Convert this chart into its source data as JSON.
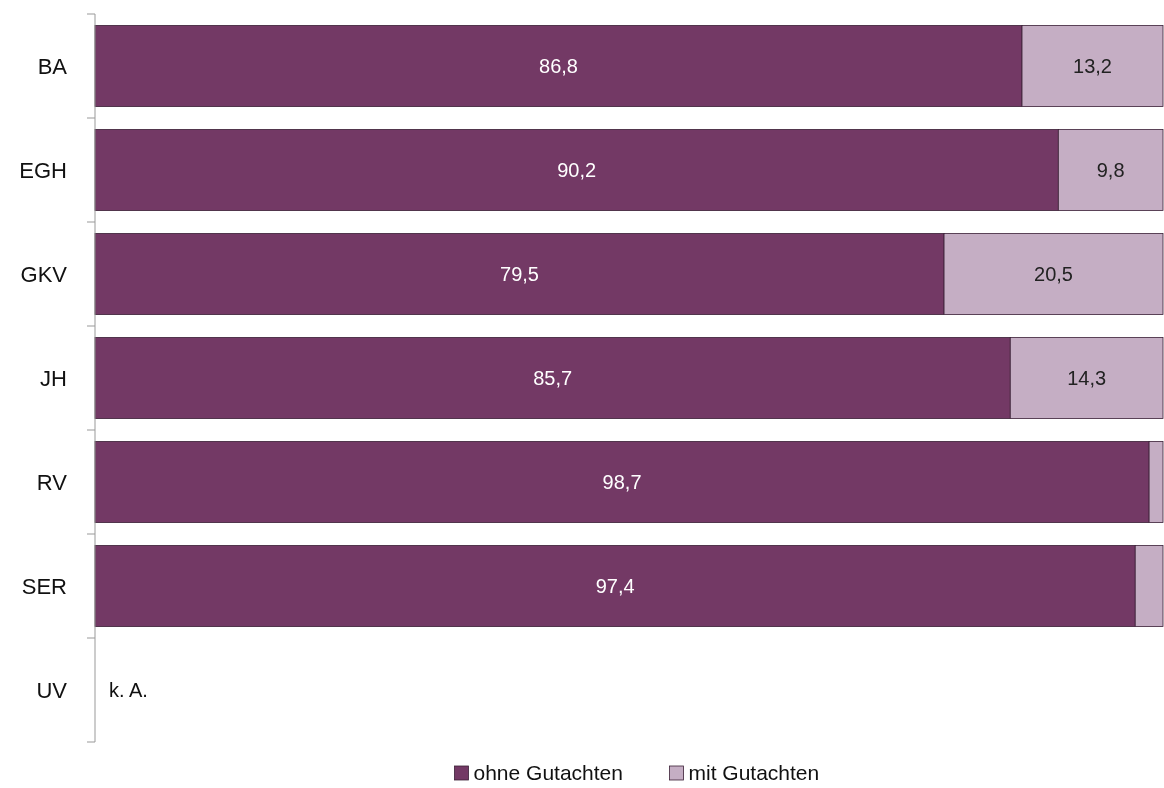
{
  "chart_data": {
    "type": "bar",
    "orientation": "horizontal",
    "stacked": true,
    "categories": [
      "BA",
      "EGH",
      "GKV",
      "JH",
      "RV",
      "SER",
      "UV"
    ],
    "series": [
      {
        "name": "ohne Gutachten",
        "color": "#733965",
        "values": [
          86.8,
          90.2,
          79.5,
          85.7,
          98.7,
          97.4,
          null
        ],
        "value_labels": [
          "86,8",
          "90,2",
          "79,5",
          "85,7",
          "98,7",
          "97,4",
          null
        ]
      },
      {
        "name": "mit Gutachten",
        "color": "#c5aec4",
        "values": [
          13.2,
          9.8,
          20.5,
          14.3,
          1.3,
          2.6,
          null
        ],
        "value_labels": [
          "13,2",
          "9,8",
          "20,5",
          "14,3",
          null,
          null,
          null
        ]
      }
    ],
    "xlim": [
      0,
      100
    ],
    "tick_labels": "y",
    "legend": "bottom",
    "annotations": [
      "k. A."
    ]
  }
}
